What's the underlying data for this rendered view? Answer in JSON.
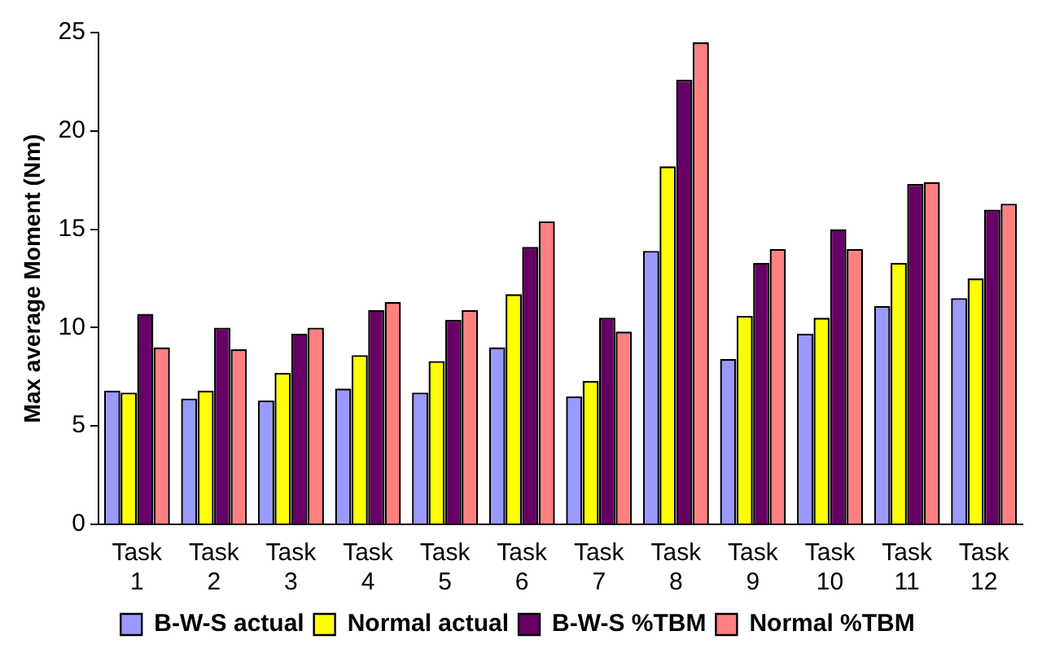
{
  "chart_data": {
    "type": "bar",
    "ylabel": "Max average Moment (Nm)",
    "categories": [
      "Task 1",
      "Task 2",
      "Task 3",
      "Task 4",
      "Task 5",
      "Task 6",
      "Task 7",
      "Task 8",
      "Task 9",
      "Task 10",
      "Task 11",
      "Task 12"
    ],
    "series": [
      {
        "name": "B-W-S actual",
        "color": "#9999ff",
        "values": [
          6.8,
          6.4,
          6.3,
          6.9,
          6.7,
          9.0,
          6.5,
          13.9,
          8.4,
          9.7,
          11.1,
          11.5
        ]
      },
      {
        "name": "Normal actual",
        "color": "#ffff00",
        "values": [
          6.7,
          6.8,
          7.7,
          8.6,
          8.3,
          11.7,
          7.3,
          18.2,
          10.6,
          10.5,
          13.3,
          12.5
        ]
      },
      {
        "name": "B-W-S %TBM",
        "color": "#660066",
        "values": [
          10.7,
          10.0,
          9.7,
          10.9,
          10.4,
          14.1,
          10.5,
          22.6,
          13.3,
          15.0,
          17.3,
          16.0
        ]
      },
      {
        "name": "Normal %TBM",
        "color": "#ff8080",
        "values": [
          9.0,
          8.9,
          10.0,
          11.3,
          10.9,
          15.4,
          9.8,
          24.5,
          14.0,
          14.0,
          17.4,
          16.3
        ]
      }
    ],
    "ylim": [
      0,
      25
    ],
    "yticks": [
      0,
      5,
      10,
      15,
      20,
      25
    ],
    "grid": false,
    "legend": "bottom"
  }
}
